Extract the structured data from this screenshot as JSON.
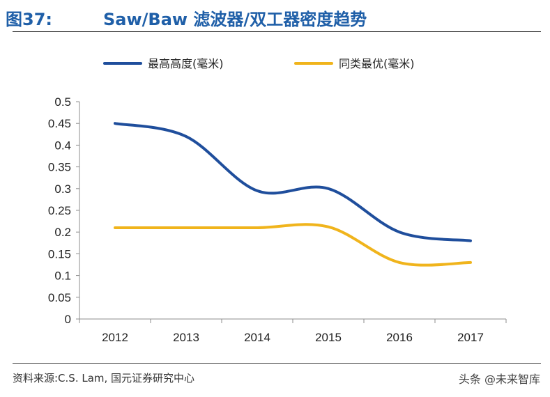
{
  "header": {
    "figure_label": "图37:",
    "title": "Saw/Baw 滤波器/双工器密度趋势"
  },
  "chart_data": {
    "type": "line",
    "categories": [
      "2012",
      "2013",
      "2014",
      "2015",
      "2016",
      "2017"
    ],
    "series": [
      {
        "name": "最高高度(毫米)",
        "color": "#1f4e9c",
        "values": [
          0.45,
          0.42,
          0.295,
          0.3,
          0.2,
          0.18
        ]
      },
      {
        "name": "同类最优(毫米)",
        "color": "#f0b41c",
        "values": [
          0.21,
          0.21,
          0.21,
          0.212,
          0.13,
          0.13
        ]
      }
    ],
    "ylim": [
      0,
      0.5
    ],
    "yticks": [
      "0",
      "0.05",
      "0.1",
      "0.15",
      "0.2",
      "0.25",
      "0.3",
      "0.35",
      "0.4",
      "0.45",
      "0.5"
    ],
    "grid": false,
    "legend": "top-center"
  },
  "footer": {
    "source": "资料来源:C.S. Lam, 国元证券研究中心",
    "watermark": "头条 @未来智库"
  }
}
